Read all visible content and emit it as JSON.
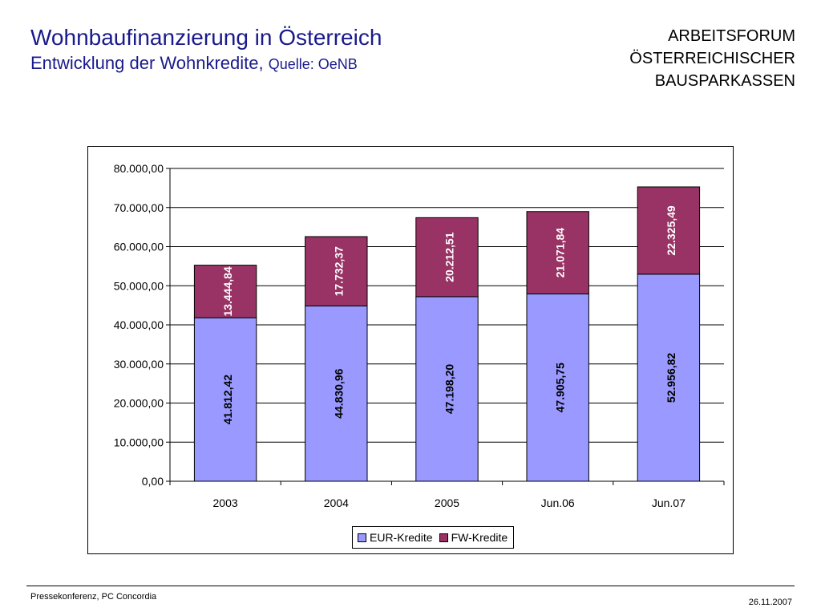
{
  "header": {
    "title": "Wohnbaufinanzierung in Österreich",
    "subtitle": "Entwicklung der Wohnkredite,",
    "source": "Quelle: OeNB"
  },
  "org": {
    "line1": "ARBEITSFORUM",
    "line2": "ÖSTERREICHISCHER",
    "line3": "BAUSPARKASSEN"
  },
  "footer": {
    "left": "Pressekonferenz, PC Concordia",
    "right": "26.11.2007"
  },
  "colors": {
    "title": "#1a1a8c",
    "eur": "#9999ff",
    "fw": "#993366"
  },
  "chart_data": {
    "type": "bar",
    "stacked": true,
    "categories": [
      "2003",
      "2004",
      "2005",
      "Jun.06",
      "Jun.07"
    ],
    "series": [
      {
        "name": "EUR-Kredite",
        "values": [
          41812.42,
          44830.96,
          47198.2,
          47905.75,
          52956.82
        ],
        "labels": [
          "41.812,42",
          "44.830,96",
          "47.198,20",
          "47.905,75",
          "52.956,82"
        ],
        "color": "#9999ff",
        "label_color": "#000000"
      },
      {
        "name": "FW-Kredite",
        "values": [
          13444.84,
          17732.37,
          20212.51,
          21071.84,
          22325.49
        ],
        "labels": [
          "13.444,84",
          "17.732,37",
          "20.212,51",
          "21.071,84",
          "22.325,49"
        ],
        "color": "#993366",
        "label_color": "#ffffff"
      }
    ],
    "ylim": [
      0,
      80000
    ],
    "yticks": [
      "0,00",
      "10.000,00",
      "20.000,00",
      "30.000,00",
      "40.000,00",
      "50.000,00",
      "60.000,00",
      "70.000,00",
      "80.000,00"
    ],
    "grid": true,
    "legend": "bottom"
  }
}
